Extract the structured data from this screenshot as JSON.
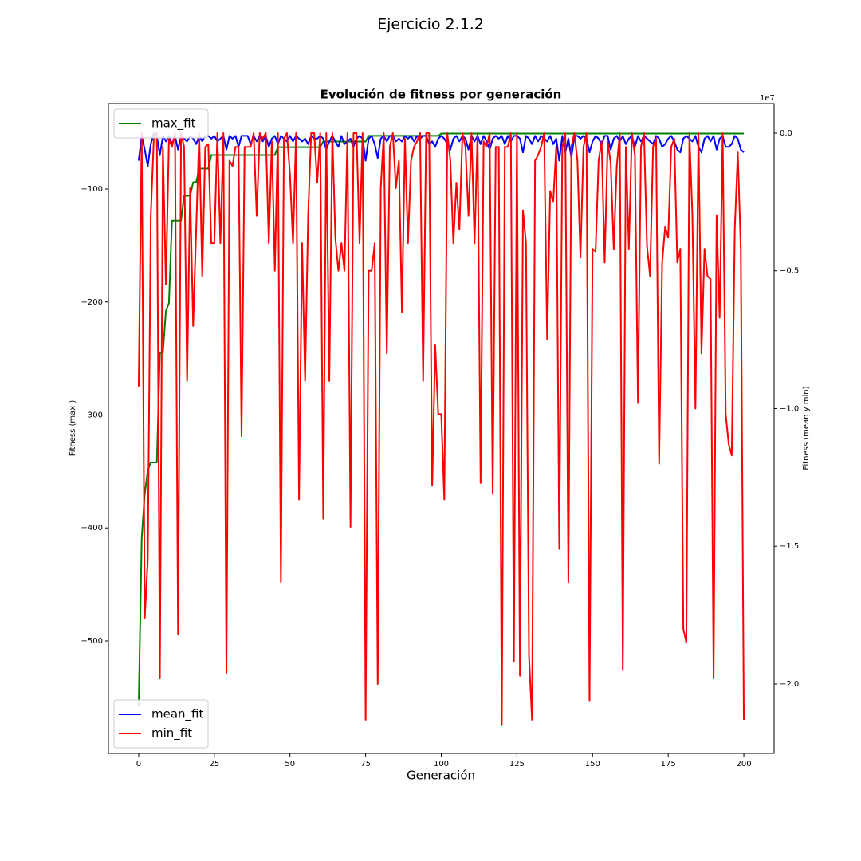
{
  "chart_data": {
    "type": "line",
    "suptitle": "Ejercicio 2.1.2",
    "title": "Evolución de fitness por generación",
    "xlabel": "Generación",
    "ylabel": "Fitness (max )",
    "y2label": "Fitness (mean y min)",
    "y2_offset_label": "1e7",
    "xlim": [
      -10,
      210
    ],
    "xticks": [
      0,
      25,
      50,
      75,
      100,
      125,
      150,
      175,
      200
    ],
    "ylim": [
      -599.5,
      -24.5
    ],
    "yticks": [
      {
        "value": -500,
        "label": "−500"
      },
      {
        "value": -400,
        "label": "−400"
      },
      {
        "value": -300,
        "label": "−300"
      },
      {
        "value": -200,
        "label": "−200"
      },
      {
        "value": -100,
        "label": "−100"
      }
    ],
    "y2lim": [
      -2.252,
      0.107
    ],
    "y2ticks": [
      {
        "value": -2,
        "label": "−2.0"
      },
      {
        "value": -1.5,
        "label": "−1.5"
      },
      {
        "value": -1,
        "label": "−1.0"
      },
      {
        "value": -0.5,
        "label": "−0.5"
      },
      {
        "value": 0,
        "label": "0.0"
      }
    ],
    "legend_loc": "upper left",
    "y2_legend_loc": "lower left",
    "x": [
      0,
      1,
      2,
      3,
      4,
      5,
      6,
      7,
      8,
      9,
      10,
      11,
      12,
      13,
      14,
      15,
      16,
      17,
      18,
      19,
      20,
      21,
      22,
      23,
      24,
      25,
      26,
      27,
      28,
      29,
      30,
      31,
      32,
      33,
      34,
      35,
      36,
      37,
      38,
      39,
      40,
      41,
      42,
      43,
      44,
      45,
      46,
      47,
      48,
      49,
      50,
      51,
      52,
      53,
      54,
      55,
      56,
      57,
      58,
      59,
      60,
      61,
      62,
      63,
      64,
      65,
      66,
      67,
      68,
      69,
      70,
      71,
      72,
      73,
      74,
      75,
      76,
      77,
      78,
      79,
      80,
      81,
      82,
      83,
      84,
      85,
      86,
      87,
      88,
      89,
      90,
      91,
      92,
      93,
      94,
      95,
      96,
      97,
      98,
      99,
      100,
      101,
      102,
      103,
      104,
      105,
      106,
      107,
      108,
      109,
      110,
      111,
      112,
      113,
      114,
      115,
      116,
      117,
      118,
      119,
      120,
      121,
      122,
      123,
      124,
      125,
      126,
      127,
      128,
      129,
      130,
      131,
      132,
      133,
      134,
      135,
      136,
      137,
      138,
      139,
      140,
      141,
      142,
      143,
      144,
      145,
      146,
      147,
      148,
      149,
      150,
      151,
      152,
      153,
      154,
      155,
      156,
      157,
      158,
      159,
      160,
      161,
      162,
      163,
      164,
      165,
      166,
      167,
      168,
      169,
      170,
      171,
      172,
      173,
      174,
      175,
      176,
      177,
      178,
      179,
      180,
      181,
      182,
      183,
      184,
      185,
      186,
      187,
      188,
      189,
      190,
      191,
      192,
      193,
      194,
      195,
      196,
      197,
      198,
      199,
      200
    ],
    "series": [
      {
        "name": "max_fit",
        "color": "#008000",
        "values": [
          -558,
          -409,
          -370,
          -349,
          -342,
          -342,
          -342,
          -245,
          -245,
          -208,
          -201,
          -128,
          -128,
          -128,
          -128,
          -106,
          -106,
          -106,
          -94,
          -94,
          -82,
          -82,
          -82,
          -82,
          -70,
          -70,
          -70,
          -70,
          -70,
          -70,
          -70,
          -70,
          -70,
          -70,
          -70,
          -70,
          -70,
          -70,
          -70,
          -70,
          -70,
          -70,
          -70,
          -70,
          -70,
          -70,
          -63,
          -63,
          -63,
          -63,
          -63,
          -63,
          -63,
          -63,
          -63,
          -63,
          -63,
          -63,
          -63,
          -63,
          -63,
          -58,
          -58,
          -58,
          -58,
          -58,
          -58,
          -58,
          -58,
          -58,
          -58,
          -58,
          -58,
          -58,
          -58,
          -58,
          -53,
          -53,
          -53,
          -53,
          -53,
          -53,
          -53,
          -53,
          -53,
          -53,
          -53,
          -53,
          -53,
          -53,
          -53,
          -53,
          -53,
          -53,
          -53,
          -53,
          -53,
          -53,
          -53,
          -53,
          -51,
          -51,
          -51,
          -51,
          -51,
          -51,
          -51,
          -51,
          -51,
          -51,
          -51,
          -51,
          -51,
          -51,
          -51,
          -51,
          -51,
          -51,
          -51,
          -51,
          -51,
          -51,
          -51,
          -51,
          -51,
          -51,
          -51,
          -51,
          -51,
          -51,
          -51,
          -51,
          -51,
          -51,
          -51,
          -51,
          -51,
          -51,
          -51,
          -51,
          -51,
          -51,
          -51,
          -51,
          -51,
          -51,
          -51,
          -51,
          -51,
          -51,
          -51,
          -51,
          -51,
          -51,
          -51,
          -51,
          -51,
          -51,
          -51,
          -51,
          -51,
          -51,
          -51,
          -51,
          -51,
          -51,
          -51,
          -51,
          -51,
          -51,
          -51,
          -51,
          -51,
          -51,
          -51,
          -51,
          -51,
          -51,
          -51,
          -51,
          -51,
          -51,
          -51,
          -51,
          -51,
          -51,
          -51,
          -51,
          -51,
          -51,
          -51,
          -51,
          -51,
          -51,
          -51,
          -51,
          -51,
          -51,
          -51,
          -51,
          -51
        ]
      },
      {
        "name": "mean_fit",
        "color": "#0000ff",
        "axis": "y2",
        "values": [
          -0.1,
          -0.01,
          -0.06,
          -0.12,
          -0.04,
          0,
          -0.01,
          -0.08,
          -0.01,
          -0.03,
          -0.01,
          -0.04,
          -0.01,
          -0.06,
          -0.01,
          -0.02,
          -0.03,
          -0.01,
          -0.02,
          -0.04,
          -0.01,
          -0.03,
          -0.01,
          -0.01,
          -0.02,
          -0.01,
          -0.03,
          -0.02,
          -0.01,
          -0.06,
          -0.01,
          -0.02,
          -0.01,
          -0.05,
          -0.01,
          -0.01,
          -0.01,
          -0.04,
          -0.01,
          -0.03,
          -0.01,
          -0.03,
          -0.01,
          -0.05,
          -0.02,
          -0.01,
          -0.04,
          -0.01,
          -0.02,
          -0.03,
          -0.01,
          -0.03,
          -0.01,
          -0.02,
          -0.03,
          -0.02,
          -0.04,
          -0.01,
          -0.02,
          -0.02,
          -0.01,
          -0.02,
          -0.06,
          -0.03,
          -0.01,
          -0.03,
          -0.05,
          -0.01,
          -0.04,
          -0.03,
          -0.02,
          -0.05,
          -0.02,
          -0.01,
          -0.02,
          -0.1,
          -0.02,
          -0.01,
          -0.04,
          -0.09,
          -0.02,
          -0.01,
          -0.03,
          -0.01,
          -0.01,
          -0.03,
          -0.02,
          -0.03,
          -0.01,
          -0.02,
          -0.01,
          -0.03,
          -0.01,
          -0.02,
          -0.01,
          -0.01,
          -0.04,
          -0.03,
          -0.05,
          -0.02,
          -0.01,
          -0.02,
          -0.04,
          -0.06,
          -0.02,
          -0.01,
          -0.03,
          -0.01,
          -0.02,
          -0.06,
          -0.01,
          -0.03,
          -0.01,
          -0.04,
          -0.01,
          -0.03,
          -0.06,
          -0.02,
          -0.01,
          -0.02,
          -0.01,
          -0.04,
          -0.01,
          -0.03,
          -0.01,
          -0.01,
          -0.02,
          -0.07,
          -0.01,
          -0.02,
          -0.04,
          -0.01,
          -0.03,
          -0.01,
          -0.02,
          -0.03,
          -0.01,
          -0.04,
          -0.02,
          -0.1,
          -0.01,
          -0.07,
          -0.02,
          -0.09,
          -0.01,
          -0.01,
          -0.02,
          -0.01,
          -0.02,
          -0.07,
          -0.03,
          -0.01,
          -0.02,
          -0.04,
          -0.01,
          -0.01,
          -0.06,
          -0.02,
          -0.01,
          -0.03,
          -0.01,
          -0.04,
          -0.02,
          -0.01,
          -0.05,
          -0.01,
          -0.03,
          -0.01,
          -0.02,
          -0.03,
          -0.04,
          -0.01,
          -0.02,
          -0.05,
          -0.04,
          -0.02,
          -0.01,
          -0.03,
          -0.06,
          -0.07,
          -0.02,
          -0.01,
          -0.02,
          -0.03,
          -0.01,
          -0.05,
          -0.07,
          -0.02,
          -0.01,
          -0.03,
          -0.01,
          -0.06,
          -0.02,
          -0.01,
          -0.05,
          -0.05,
          -0.04,
          -0.01,
          -0.02,
          -0.06,
          -0.07
        ]
      },
      {
        "name": "min_fit",
        "color": "#ff0000",
        "axis": "y2",
        "values": [
          -0.92,
          0,
          -1.76,
          -1.55,
          -0.3,
          -0.02,
          0,
          -1.98,
          -0.05,
          -0.55,
          -0.02,
          -0.05,
          0,
          -1.82,
          0,
          -0.05,
          -0.9,
          -0.2,
          -0.7,
          -0.35,
          0,
          -0.52,
          -0.05,
          -0.04,
          -0.4,
          -0.4,
          0,
          -0.4,
          0,
          -1.96,
          -0.1,
          -0.12,
          -0.05,
          -0.05,
          -1.1,
          -0.05,
          -0.05,
          -0.05,
          0,
          -0.3,
          0,
          -0.02,
          0,
          -0.4,
          -0.03,
          -0.5,
          0,
          -1.63,
          -0.02,
          0,
          -0.15,
          -0.4,
          0,
          -1.33,
          -0.4,
          -0.9,
          -0.3,
          0,
          0,
          -0.18,
          0,
          -1.4,
          0,
          -0.9,
          0,
          -0.38,
          -0.5,
          -0.4,
          -0.5,
          0,
          -1.43,
          0,
          0,
          -0.4,
          0,
          -2.13,
          -0.5,
          -0.5,
          -0.4,
          -2,
          -0.2,
          0,
          -0.8,
          -0.05,
          0,
          -0.2,
          -0.1,
          -0.65,
          -0.02,
          -0.4,
          -0.1,
          -0.05,
          -0.03,
          0,
          -0.9,
          0,
          0,
          -1.28,
          -0.77,
          -1.02,
          -1.02,
          -1.33,
          0,
          -0.1,
          -0.4,
          -0.18,
          -0.35,
          0,
          -0.05,
          -0.3,
          0,
          -0.4,
          0,
          -1.27,
          -0.03,
          -0.05,
          0,
          -1.31,
          -0.05,
          -0.05,
          -2.15,
          -0.05,
          -0.05,
          0,
          -1.92,
          0,
          -1.97,
          -0.28,
          -0.4,
          -1.9,
          -2.13,
          -0.1,
          -0.08,
          -0.05,
          0,
          -0.75,
          -0.21,
          -0.25,
          -0.05,
          -1.51,
          -0.05,
          0,
          -1.63,
          -0.05,
          0,
          -0.1,
          -0.45,
          -0.05,
          0,
          -2.06,
          -0.42,
          -0.43,
          -0.1,
          -0.03,
          -0.47,
          -0.03,
          -0.11,
          -0.42,
          -0.12,
          0,
          -1.95,
          -0.05,
          -0.42,
          0,
          -0.08,
          -0.98,
          -0.05,
          0,
          -0.41,
          -0.52,
          -0.05,
          -0.02,
          -1.2,
          -0.47,
          -0.34,
          -0.38,
          -0.05,
          -0.02,
          -0.47,
          -0.42,
          -1.8,
          -1.85,
          0,
          -0.3,
          -1,
          0,
          -0.8,
          -0.42,
          -0.52,
          -0.53,
          -1.98,
          -0.3,
          -0.67,
          0,
          -1.02,
          -1.13,
          -1.17,
          -0.35,
          -0.07,
          -0.42,
          -2.13
        ]
      }
    ]
  }
}
